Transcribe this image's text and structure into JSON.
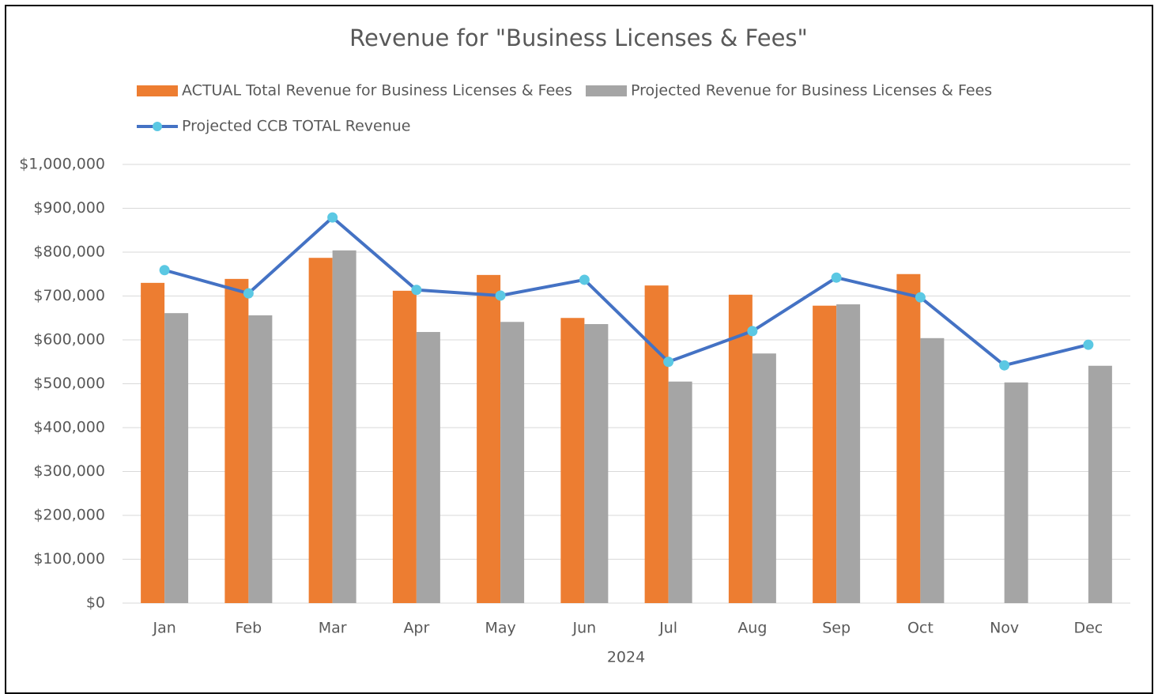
{
  "chart_data": {
    "type": "bar",
    "title": "Revenue for \"Business Licenses & Fees\"",
    "x_label": "2024",
    "categories": [
      "Jan",
      "Feb",
      "Mar",
      "Apr",
      "May",
      "Jun",
      "Jul",
      "Aug",
      "Sep",
      "Oct",
      "Nov",
      "Dec"
    ],
    "series": [
      {
        "name": "ACTUAL Total Revenue for Business Licenses & Fees",
        "type": "bar",
        "color": "#ed7d31",
        "values": [
          730000,
          739000,
          787000,
          712000,
          748000,
          650000,
          724000,
          703000,
          678000,
          750000,
          null,
          null
        ]
      },
      {
        "name": "Projected Revenue for Business Licenses & Fees",
        "type": "bar",
        "color": "#a5a5a5",
        "values": [
          661000,
          656000,
          804000,
          618000,
          641000,
          636000,
          505000,
          569000,
          681000,
          604000,
          503000,
          541000
        ]
      },
      {
        "name": "Projected CCB TOTAL Revenue",
        "type": "line",
        "color": "#4472c4",
        "marker_color": "#5bc8e3",
        "values": [
          759000,
          706000,
          879000,
          714000,
          701000,
          737000,
          550000,
          620000,
          742000,
          697000,
          542000,
          589000
        ]
      }
    ],
    "ylim": [
      0,
      1000000
    ],
    "yticks": [
      {
        "value": 0,
        "label": "$0"
      },
      {
        "value": 100000,
        "label": "$100,000"
      },
      {
        "value": 200000,
        "label": "$200,000"
      },
      {
        "value": 300000,
        "label": "$300,000"
      },
      {
        "value": 400000,
        "label": "$400,000"
      },
      {
        "value": 500000,
        "label": "$500,000"
      },
      {
        "value": 600000,
        "label": "$600,000"
      },
      {
        "value": 700000,
        "label": "$700,000"
      },
      {
        "value": 800000,
        "label": "$800,000"
      },
      {
        "value": 900000,
        "label": "$900,000"
      },
      {
        "value": 1000000,
        "label": "$1,000,000"
      }
    ],
    "grid": true,
    "legend": "top"
  }
}
